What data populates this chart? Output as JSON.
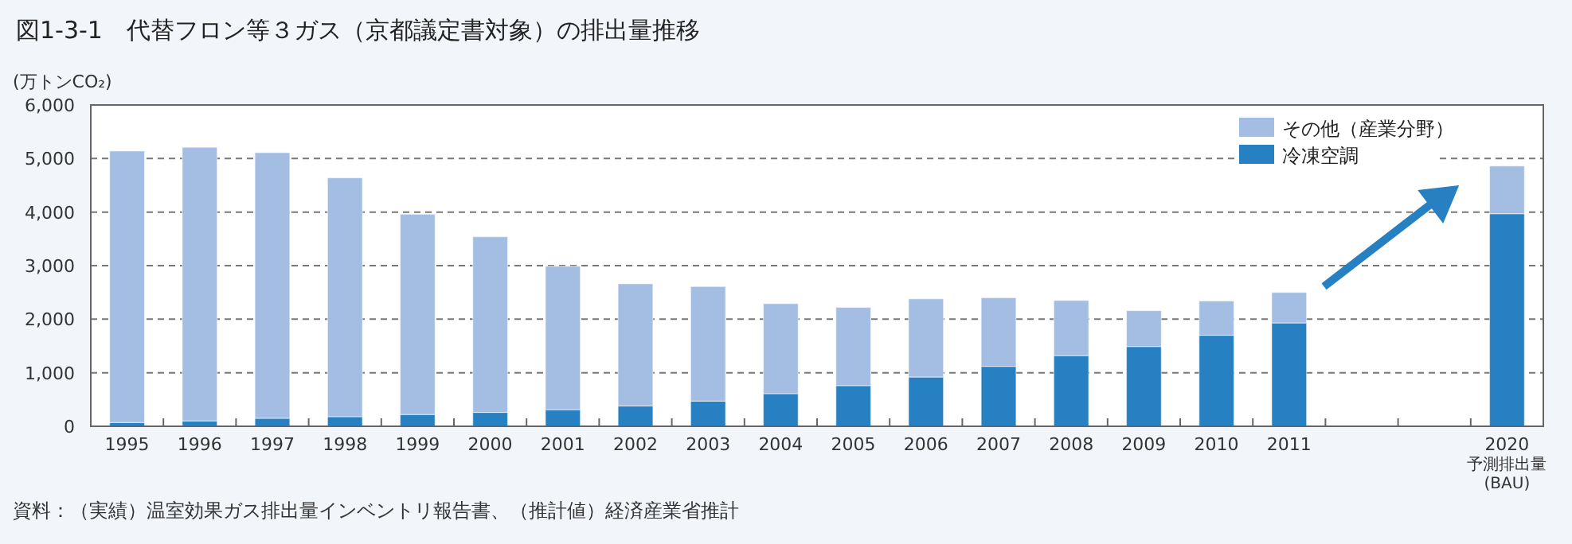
{
  "chart_data": {
    "type": "bar",
    "stacked": true,
    "title": "図1-3-1　代替フロン等３ガス（京都議定書対象）の排出量推移",
    "ylabel": "(万トンCO₂)",
    "categories": [
      "1995",
      "1996",
      "1997",
      "1998",
      "1999",
      "2000",
      "2001",
      "2002",
      "2003",
      "2004",
      "2005",
      "2006",
      "2007",
      "2008",
      "2009",
      "2010",
      "2011",
      null,
      null,
      "2020\n予測排出量\n(BAU)"
    ],
    "series": [
      {
        "name": "冷凍空調",
        "color": "#2680c2",
        "values": [
          70,
          100,
          150,
          180,
          220,
          260,
          310,
          380,
          470,
          610,
          760,
          920,
          1120,
          1320,
          1490,
          1700,
          1930,
          null,
          null,
          3970
        ]
      },
      {
        "name": "その他（産業分野）",
        "color": "#a3bde3",
        "values": [
          5070,
          5110,
          4960,
          4460,
          3740,
          3280,
          2680,
          2280,
          2140,
          1680,
          1460,
          1460,
          1280,
          1030,
          670,
          640,
          570,
          null,
          null,
          890
        ]
      }
    ],
    "ylim": [
      0,
      6000
    ],
    "yticks": [
      0,
      {
        "value": 1000,
        "label": "1,000"
      },
      {
        "value": 2000,
        "label": "2,000"
      },
      {
        "value": 3000,
        "label": "3,000"
      },
      {
        "value": 4000,
        "label": "4,000"
      },
      {
        "value": 5000,
        "label": "5,000"
      },
      {
        "value": 6000,
        "label": "6,000"
      }
    ],
    "grid": "y",
    "legend": "top right",
    "annotations": [
      "資料：（実績）温室効果ガス排出量インベントリ報告書、（推計値）経済産業省推計"
    ]
  }
}
